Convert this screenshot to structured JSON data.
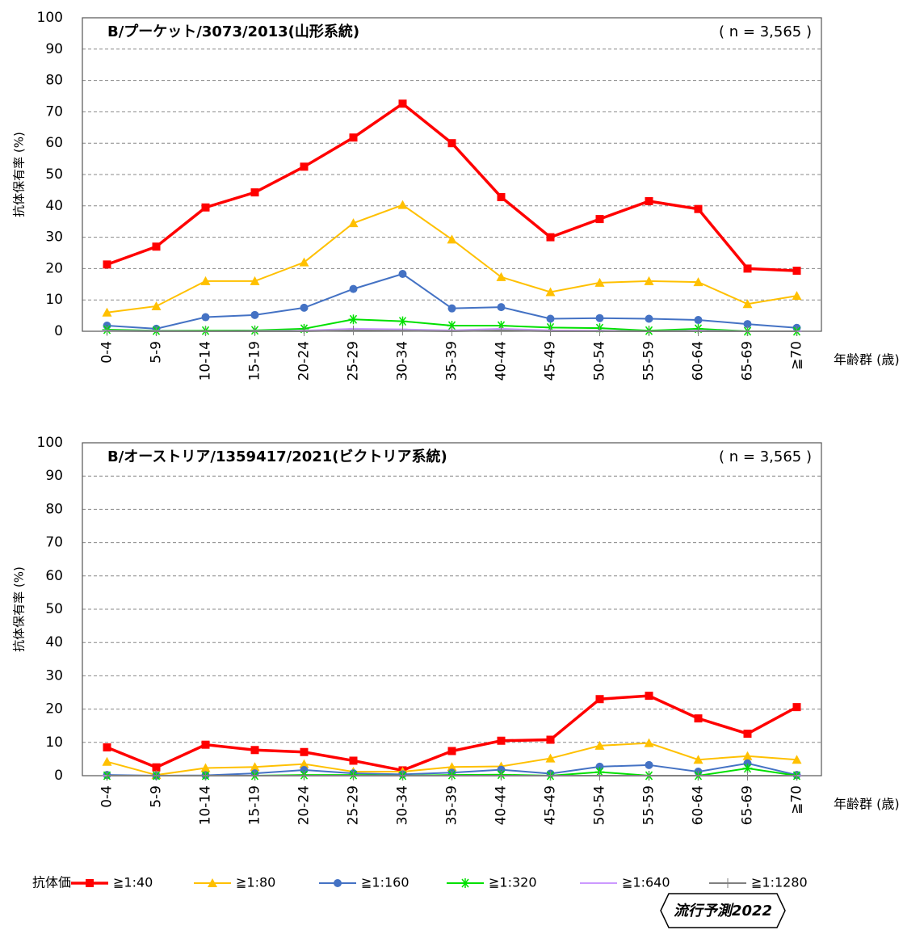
{
  "chart_data": [
    {
      "type": "line",
      "title": "B/プーケット/3073/2013(山形系統)",
      "annotation": "( n = 3,565 )",
      "y_label": "抗体保有率 (%)",
      "x_label": "年齢群 (歳)",
      "categories": [
        "0-4",
        "5-9",
        "10-14",
        "15-19",
        "20-24",
        "25-29",
        "30-34",
        "35-39",
        "40-44",
        "45-49",
        "50-54",
        "55-59",
        "60-64",
        "65-69",
        "≧70"
      ],
      "ylim": [
        0,
        100
      ],
      "yticks": [
        0,
        10,
        20,
        30,
        40,
        50,
        60,
        70,
        80,
        90,
        100
      ],
      "grid": true,
      "series": [
        {
          "name": "≧1:40",
          "color": "#ff0000",
          "marker": "square",
          "values": [
            21.3,
            27,
            39.5,
            44.3,
            52.5,
            61.8,
            72.6,
            60,
            42.8,
            30,
            35.8,
            41.5,
            39,
            20,
            19.3
          ]
        },
        {
          "name": "≧1:80",
          "color": "#ffc000",
          "marker": "triangle",
          "values": [
            6,
            8,
            16,
            16,
            22,
            34.5,
            40.3,
            29.3,
            17.3,
            12.5,
            15.5,
            16,
            15.7,
            8.7,
            11.3
          ]
        },
        {
          "name": "≧1:160",
          "color": "#4472c4",
          "marker": "circle",
          "values": [
            1.8,
            0.8,
            4.5,
            5.2,
            7.5,
            13.5,
            18.3,
            7.3,
            7.7,
            4,
            4.2,
            4,
            3.6,
            2.3,
            1.1
          ]
        },
        {
          "name": "≧1:320",
          "color": "#00e000",
          "marker": "asterisk",
          "values": [
            0.5,
            0.2,
            0.2,
            0.3,
            0.8,
            3.8,
            3.2,
            1.8,
            1.8,
            1.2,
            1,
            0.2,
            0.8,
            0,
            0
          ]
        },
        {
          "name": "≧1:640",
          "color": "#cc99ff",
          "marker": "dash",
          "values": [
            0.2,
            0.1,
            0,
            0.1,
            0.2,
            0.8,
            0.6,
            0.3,
            0.8,
            0.3,
            0.2,
            0,
            0.2,
            0,
            0
          ]
        },
        {
          "name": "≧1:1280",
          "color": "#808080",
          "marker": "plus",
          "values": [
            0.1,
            0,
            0,
            0,
            0,
            0.3,
            0.2,
            0,
            0.3,
            0,
            0,
            0,
            0,
            0,
            0
          ]
        }
      ]
    },
    {
      "type": "line",
      "title": "B/オーストリア/1359417/2021(ビクトリア系統)",
      "annotation": "( n = 3,565 )",
      "y_label": "抗体保有率 (%)",
      "x_label": "年齢群 (歳)",
      "categories": [
        "0-4",
        "5-9",
        "10-14",
        "15-19",
        "20-24",
        "25-29",
        "30-34",
        "35-39",
        "40-44",
        "45-49",
        "50-54",
        "55-59",
        "60-64",
        "65-69",
        "≧70"
      ],
      "ylim": [
        0,
        100
      ],
      "yticks": [
        0,
        10,
        20,
        30,
        40,
        50,
        60,
        70,
        80,
        90,
        100
      ],
      "grid": true,
      "series": [
        {
          "color": "#ff0000",
          "marker": "square",
          "values": [
            8.5,
            2.5,
            9.3,
            7.7,
            7.1,
            4.5,
            1.6,
            7.4,
            10.5,
            10.8,
            23,
            24,
            17.2,
            12.6,
            20.6
          ]
        },
        {
          "color": "#ffc000",
          "marker": "triangle",
          "values": [
            4.2,
            0.2,
            2.3,
            2.6,
            3.5,
            1.2,
            1.2,
            2.6,
            2.8,
            5.2,
            9,
            9.8,
            4.8,
            5.9,
            4.8
          ]
        },
        {
          "color": "#4472c4",
          "marker": "circle",
          "values": [
            0.2,
            0,
            0.1,
            0.7,
            1.7,
            0.7,
            0.4,
            0.9,
            1.8,
            0.6,
            2.7,
            3.2,
            1.2,
            3.7,
            0.2
          ]
        },
        {
          "color": "#00e000",
          "marker": "asterisk",
          "values": [
            0,
            0,
            0,
            0,
            0.2,
            0.2,
            0,
            0.2,
            0.3,
            0,
            1.1,
            0,
            0,
            2.2,
            0
          ]
        },
        {
          "color": "#cc99ff",
          "marker": "dash",
          "values": [
            0,
            0,
            0,
            0,
            0,
            0,
            0,
            0,
            0,
            0,
            0,
            0,
            0,
            0,
            0
          ]
        },
        {
          "color": "#808080",
          "marker": "plus",
          "values": [
            0,
            0,
            0,
            0,
            0,
            0,
            0,
            0,
            0,
            0,
            0,
            0,
            0,
            0,
            0
          ]
        }
      ]
    }
  ],
  "legend": {
    "title": "抗体価"
  },
  "footer": "流行予測2022"
}
